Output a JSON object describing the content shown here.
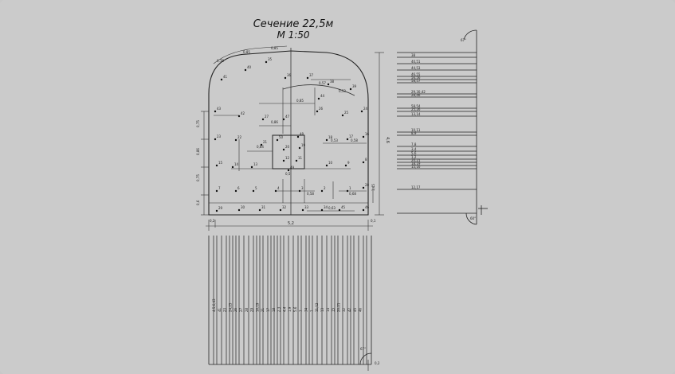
{
  "drawing": {
    "title_line1": "Сечение 22,5м",
    "title_line2": "М 1:50",
    "width_label": "5,2",
    "height_label": "4,6",
    "right_angle_top": "67°",
    "right_angle_bottom": "60°",
    "bottom_angle": "67°",
    "bottom_dim_right": "0,2",
    "bottom_dim_left": "0,2",
    "right_margin_dim": "0,1",
    "dimensions": {
      "arc_1": "0,78",
      "arc_2": "0,85",
      "arc_3": "0,85",
      "left_1": "0,75",
      "left_2": "0,86",
      "left_3": "0,75",
      "left_4": "0,6",
      "inner_1": "0,85",
      "inner_2": "0,86",
      "inner_3": "0,84",
      "inner_4": "0,72",
      "inner_5": "0,57",
      "inner_6": "0,53",
      "inner_7": "0,53",
      "inner_8": "0,58",
      "inner_9": "0,58",
      "inner_10": "0,68",
      "inner_11": "0,63",
      "inner_12": "1,75",
      "right_1": "1,45",
      "right_2": "0,57",
      "right_3": "0,62",
      "center_1": "0,58",
      "center_2": "0,5"
    },
    "hole_numbers": [
      "41",
      "40",
      "35",
      "36",
      "37",
      "38",
      "39",
      "44",
      "43",
      "42",
      "27",
      "26",
      "25",
      "24",
      "23",
      "22",
      "21",
      "20",
      "19",
      "18",
      "17",
      "16",
      "15",
      "14",
      "13",
      "12",
      "11",
      "10",
      "9",
      "8",
      "7",
      "6",
      "5",
      "4",
      "3",
      "2",
      "1",
      "28",
      "29",
      "30",
      "31",
      "32",
      "33",
      "34",
      "45",
      "46",
      "47",
      "48",
      "49",
      "50"
    ],
    "right_labels": [
      "38",
      "40,51",
      "44,53",
      "46,55",
      "56,56",
      "58,57",
      "29,30,42",
      "28,46",
      "58,54",
      "25,26",
      "13,14",
      "10,11",
      "8,9",
      "7,8",
      "3,4",
      "5,6",
      "1,2",
      "20,21",
      "18,19",
      "15,16",
      "12,17"
    ],
    "bottom_labels": [
      "4,5,6,43",
      "41",
      "23",
      "24,25",
      "26",
      "27",
      "28",
      "29",
      "16,19",
      "21",
      "17",
      "18",
      "2,3",
      "4,4",
      "1,9",
      "5,6",
      "7",
      "34",
      "1",
      "11,12",
      "13",
      "14",
      "15",
      "20,21",
      "32",
      "42",
      "45",
      "46"
    ]
  }
}
